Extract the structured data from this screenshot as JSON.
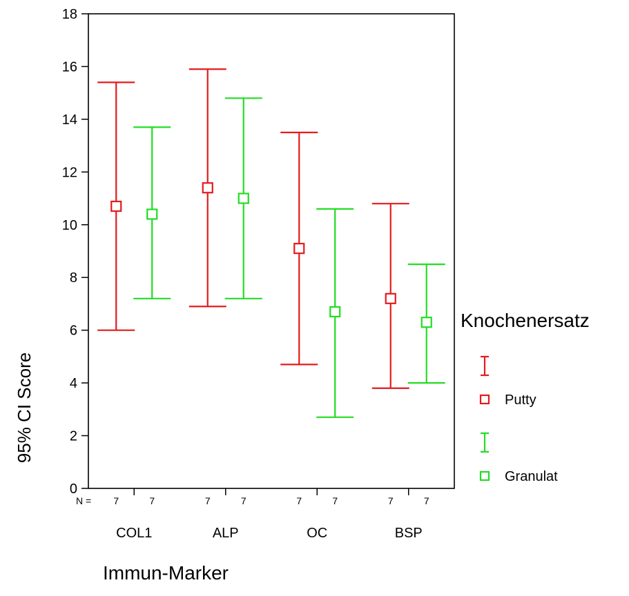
{
  "chart_data": {
    "type": "error-bar",
    "ylabel": "95% CI Score",
    "xlabel": "Immun-Marker",
    "ylim": [
      0,
      18
    ],
    "yticks": [
      "0",
      "2",
      "4",
      "6",
      "8",
      "10",
      "12",
      "14",
      "16",
      "18"
    ],
    "categories": [
      "COL1",
      "ALP",
      "OC",
      "BSP"
    ],
    "n_label": "N =",
    "legend": {
      "title": "Knochenersatz",
      "position": "right",
      "entries": [
        "Putty",
        "Granulat"
      ]
    },
    "series": [
      {
        "name": "Putty",
        "color": "#e41a1c",
        "n": [
          "7",
          "7",
          "7",
          "7"
        ],
        "mean": [
          10.7,
          11.4,
          9.1,
          7.2
        ],
        "lower": [
          6.0,
          6.9,
          4.7,
          3.8
        ],
        "upper": [
          15.4,
          15.9,
          13.5,
          10.8
        ]
      },
      {
        "name": "Granulat",
        "color": "#22dd22",
        "n": [
          "7",
          "7",
          "7",
          "7"
        ],
        "mean": [
          10.4,
          11.0,
          6.7,
          6.3
        ],
        "lower": [
          7.2,
          7.2,
          2.7,
          4.0
        ],
        "upper": [
          13.7,
          14.8,
          10.6,
          8.5
        ]
      }
    ]
  }
}
